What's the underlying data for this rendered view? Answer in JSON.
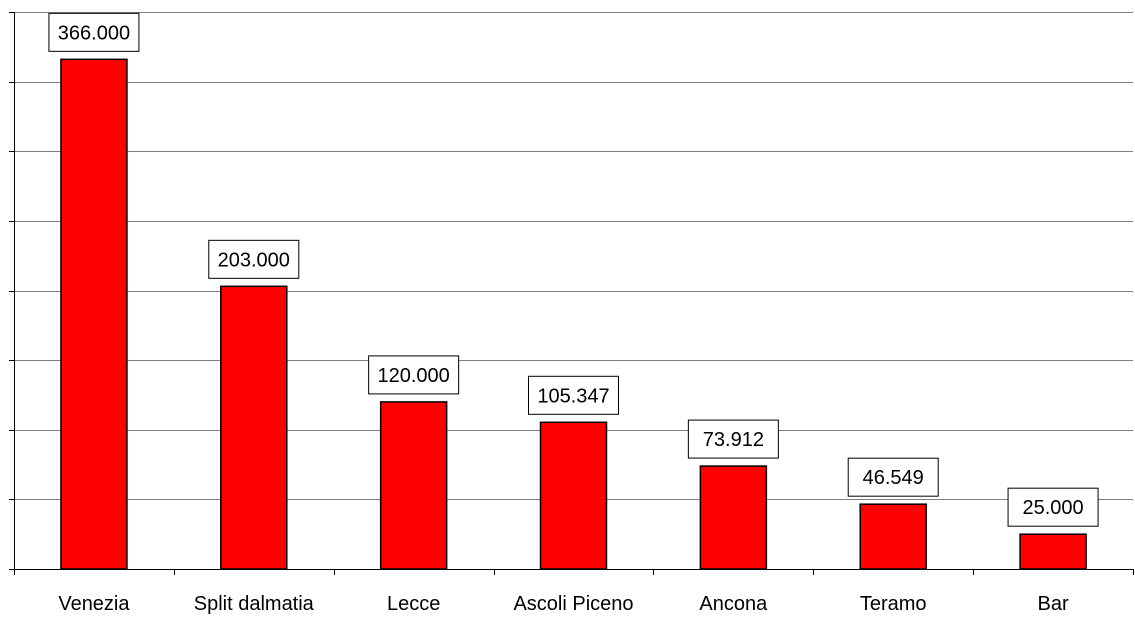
{
  "chart_data": {
    "type": "bar",
    "categories": [
      "Venezia",
      "Split dalmatia",
      "Lecce",
      "Ascoli Piceno",
      "Ancona",
      "Teramo",
      "Bar"
    ],
    "values": [
      366000,
      203000,
      120000,
      105347,
      73912,
      46549,
      25000
    ],
    "value_labels": [
      "366.000",
      "203.000",
      "120.000",
      "105.347",
      "73.912",
      "46.549",
      "25.000"
    ],
    "ylim": [
      0,
      400000
    ],
    "y_gridline_step": 50000,
    "grid": true,
    "legend": "none",
    "bar_color": "#ff0000",
    "bar_edge_color": "#000000"
  }
}
